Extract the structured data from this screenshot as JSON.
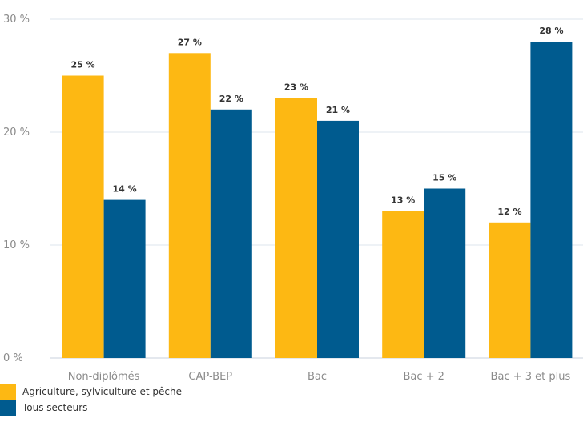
{
  "chart_data": {
    "type": "bar",
    "categories": [
      "Non-diplômés",
      "CAP-BEP",
      "Bac",
      "Bac + 2",
      "Bac + 3 et plus"
    ],
    "series": [
      {
        "name": "Agriculture, sylviculture et pêche",
        "color": "#FDB813",
        "values": [
          25,
          27,
          23,
          13,
          12
        ]
      },
      {
        "name": "Tous secteurs",
        "color": "#005B8F",
        "values": [
          14,
          22,
          21,
          15,
          28
        ]
      }
    ],
    "data_labels": [
      [
        "25 %",
        "27 %",
        "23 %",
        "13 %",
        "12 %"
      ],
      [
        "14 %",
        "22 %",
        "21 %",
        "15 %",
        "28 %"
      ]
    ],
    "y_ticks": [
      {
        "value": 0,
        "label": "0 %"
      },
      {
        "value": 10,
        "label": "10 %"
      },
      {
        "value": 20,
        "label": "20 %"
      },
      {
        "value": 30,
        "label": "30 %"
      }
    ],
    "ylim": [
      0,
      30
    ],
    "grid": true,
    "legend_position": "bottom-left"
  }
}
